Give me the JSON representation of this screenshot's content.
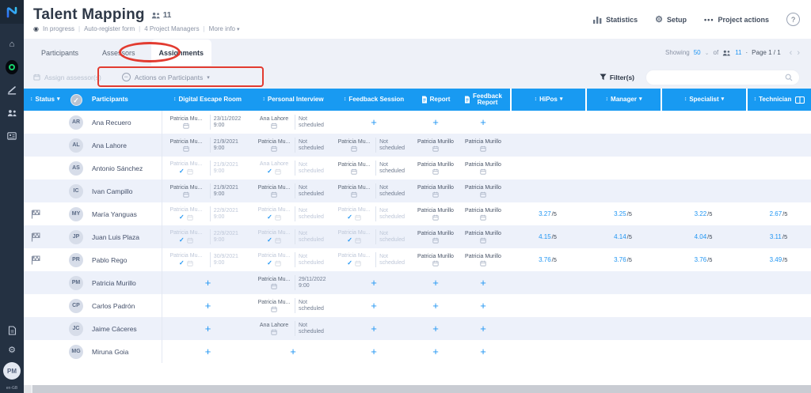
{
  "sidebar": {
    "avatar_initials": "PM",
    "locale": "en-GB"
  },
  "header": {
    "title": "Talent Mapping",
    "participant_count": "11",
    "subtitle_items": [
      "In progress",
      "Auto-register form",
      "4 Project Managers",
      "More info"
    ],
    "sep": "|",
    "actions": {
      "statistics": "Statistics",
      "setup": "Setup",
      "project_actions": "Project actions",
      "help": "?"
    }
  },
  "tabs": {
    "participants": "Participants",
    "assessors": "Assessors",
    "assignments": "Assignments"
  },
  "pagination": {
    "showing": "Showing",
    "page_size": "50",
    "of": "of",
    "total": "11",
    "dot": "·",
    "page": "Page 1 / 1",
    "prev": "‹",
    "next": "›"
  },
  "toolbar": {
    "assign": "Assign assessor(s)",
    "actions_on_participants": "Actions on Participants",
    "filters": "Filter(s)",
    "search_placeholder": ""
  },
  "table": {
    "columns": [
      {
        "label": "Status"
      },
      {
        "label": ""
      },
      {
        "label": "Participants"
      },
      {
        "label": "Digital Escape Room"
      },
      {
        "label": "Personal Interview"
      },
      {
        "label": "Feedback Session"
      },
      {
        "label": "Report"
      },
      {
        "label": "Feedback Report"
      },
      {
        "label": "HiPos"
      },
      {
        "label": "Manager"
      },
      {
        "label": "Specialist"
      },
      {
        "label": "Technician"
      }
    ],
    "plus": "+",
    "done_mark": "✓",
    "score_suffix": "/5",
    "rows": [
      {
        "initials": "AR",
        "name": "Ana Recuero",
        "flag": false,
        "der": {
          "assessor": "Patricia Mu...",
          "done": false,
          "faded": false,
          "when": [
            "23/11/2022",
            "9:00"
          ]
        },
        "pi": {
          "assessor": "Ana Lahore",
          "done": false,
          "faded": false,
          "when": [
            "Not",
            "scheduled"
          ]
        },
        "fs": "plus",
        "report": "plus",
        "fr": "plus",
        "scores": null
      },
      {
        "initials": "AL",
        "name": "Ana Lahore",
        "flag": false,
        "der": {
          "assessor": "Patricia Mu...",
          "done": false,
          "faded": false,
          "when": [
            "21/9/2021",
            "9:00"
          ]
        },
        "pi": {
          "assessor": "Patricia Mu...",
          "done": false,
          "faded": false,
          "when": [
            "Not",
            "scheduled"
          ]
        },
        "fs": {
          "assessor": "Patricia Mu...",
          "done": false,
          "faded": false,
          "when": [
            "Not",
            "scheduled"
          ]
        },
        "report": {
          "assessor": "Patricia Murillo"
        },
        "fr": {
          "assessor": "Patricia Murillo"
        },
        "scores": null
      },
      {
        "initials": "AS",
        "name": "Antonio Sánchez",
        "flag": false,
        "der": {
          "assessor": "Patricia Mu...",
          "done": true,
          "faded": true,
          "when": [
            "21/9/2021",
            "9:00"
          ]
        },
        "pi": {
          "assessor": "Ana Lahore",
          "done": true,
          "faded": true,
          "when": [
            "Not",
            "scheduled"
          ]
        },
        "fs": {
          "assessor": "Patricia Mu...",
          "done": false,
          "faded": false,
          "when": [
            "Not",
            "scheduled"
          ]
        },
        "report": {
          "assessor": "Patricia Murillo"
        },
        "fr": {
          "assessor": "Patricia Murillo"
        },
        "scores": null
      },
      {
        "initials": "IC",
        "name": "Ivan Campillo",
        "flag": false,
        "der": {
          "assessor": "Patricia Mu...",
          "done": false,
          "faded": false,
          "when": [
            "21/9/2021",
            "9:00"
          ]
        },
        "pi": {
          "assessor": "Patricia Mu...",
          "done": false,
          "faded": false,
          "when": [
            "Not",
            "scheduled"
          ]
        },
        "fs": {
          "assessor": "Patricia Mu...",
          "done": false,
          "faded": false,
          "when": [
            "Not",
            "scheduled"
          ]
        },
        "report": {
          "assessor": "Patricia Murillo"
        },
        "fr": {
          "assessor": "Patricia Murillo"
        },
        "scores": null
      },
      {
        "initials": "MY",
        "name": "María Yanguas",
        "flag": true,
        "der": {
          "assessor": "Patricia Mu...",
          "done": true,
          "faded": true,
          "when": [
            "22/9/2021",
            "9:00"
          ]
        },
        "pi": {
          "assessor": "Patricia Mu...",
          "done": true,
          "faded": true,
          "when": [
            "Not",
            "scheduled"
          ]
        },
        "fs": {
          "assessor": "Patricia Mu...",
          "done": true,
          "faded": true,
          "when": [
            "Not",
            "scheduled"
          ]
        },
        "report": {
          "assessor": "Patricia Murillo"
        },
        "fr": {
          "assessor": "Patricia Murillo"
        },
        "scores": [
          "3.27",
          "3.25",
          "3.22",
          "2.67"
        ]
      },
      {
        "initials": "JP",
        "name": "Juan Luis Plaza",
        "flag": true,
        "der": {
          "assessor": "Patricia Mu...",
          "done": true,
          "faded": true,
          "when": [
            "22/9/2021",
            "9:00"
          ]
        },
        "pi": {
          "assessor": "Patricia Mu...",
          "done": true,
          "faded": true,
          "when": [
            "Not",
            "scheduled"
          ]
        },
        "fs": {
          "assessor": "Patricia Mu...",
          "done": true,
          "faded": true,
          "when": [
            "Not",
            "scheduled"
          ]
        },
        "report": {
          "assessor": "Patricia Murillo"
        },
        "fr": {
          "assessor": "Patricia Murillo"
        },
        "scores": [
          "4.15",
          "4.14",
          "4.04",
          "3.11"
        ]
      },
      {
        "initials": "PR",
        "name": "Pablo Rego",
        "flag": true,
        "der": {
          "assessor": "Patricia Mu...",
          "done": true,
          "faded": true,
          "when": [
            "30/9/2021",
            "9:00"
          ]
        },
        "pi": {
          "assessor": "Patricia Mu...",
          "done": true,
          "faded": true,
          "when": [
            "Not",
            "scheduled"
          ]
        },
        "fs": {
          "assessor": "Patricia Mu...",
          "done": true,
          "faded": true,
          "when": [
            "Not",
            "scheduled"
          ]
        },
        "report": {
          "assessor": "Patricia Murillo"
        },
        "fr": {
          "assessor": "Patricia Murillo"
        },
        "scores": [
          "3.76",
          "3.76",
          "3.76",
          "3.49"
        ]
      },
      {
        "initials": "PM",
        "name": "Patricia Murillo",
        "flag": false,
        "der": "plus",
        "pi": {
          "assessor": "Patricia Mu...",
          "done": false,
          "faded": false,
          "when": [
            "29/11/2022",
            "9:00"
          ]
        },
        "fs": "plus",
        "report": "plus",
        "fr": "plus",
        "scores": null
      },
      {
        "initials": "CP",
        "name": "Carlos Padrón",
        "flag": false,
        "der": "plus",
        "pi": {
          "assessor": "Patricia Mu...",
          "done": false,
          "faded": false,
          "when": [
            "Not",
            "scheduled"
          ]
        },
        "fs": "plus",
        "report": "plus",
        "fr": "plus",
        "scores": null
      },
      {
        "initials": "JC",
        "name": "Jaime Cáceres",
        "flag": false,
        "der": "plus",
        "pi": {
          "assessor": "Ana Lahore",
          "done": false,
          "faded": false,
          "when": [
            "Not",
            "scheduled"
          ]
        },
        "fs": "plus",
        "report": "plus",
        "fr": "plus",
        "scores": null
      },
      {
        "initials": "MG",
        "name": "Miruna Goia",
        "flag": false,
        "der": "plus",
        "pi": "plus",
        "fs": "plus",
        "report": "plus",
        "fr": "plus",
        "scores": null
      }
    ]
  }
}
